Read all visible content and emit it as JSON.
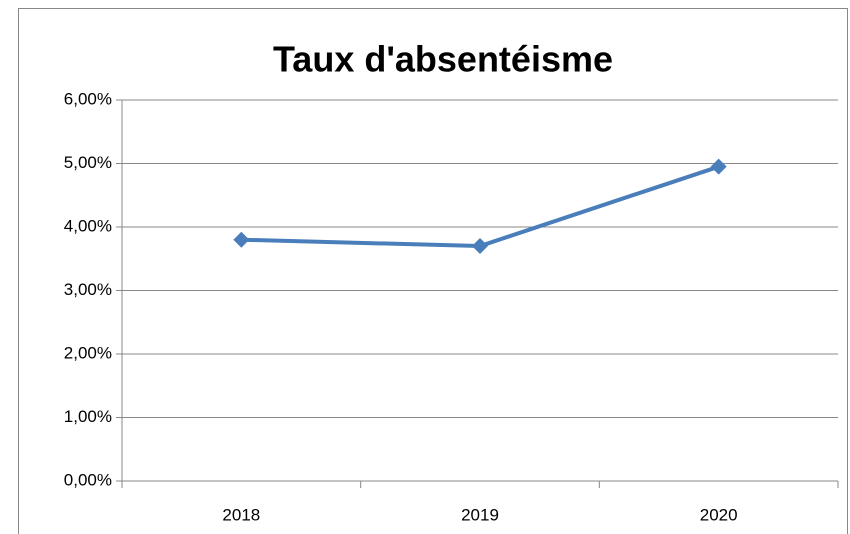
{
  "chart_data": {
    "type": "line",
    "title": "Taux d'absentéisme",
    "categories": [
      "2018",
      "2019",
      "2020"
    ],
    "series": [
      {
        "name": "Taux d'absentéisme",
        "color": "#4a7ebb",
        "values": [
          3.8,
          3.7,
          4.95
        ]
      }
    ],
    "ylim": [
      0,
      6
    ],
    "yticks": [
      {
        "value": 0,
        "label": "0,00%"
      },
      {
        "value": 1,
        "label": "1,00%"
      },
      {
        "value": 2,
        "label": "2,00%"
      },
      {
        "value": 3,
        "label": "3,00%"
      },
      {
        "value": 4,
        "label": "4,00%"
      },
      {
        "value": 5,
        "label": "5,00%"
      },
      {
        "value": 6,
        "label": "6,00%"
      }
    ],
    "grid": true
  }
}
